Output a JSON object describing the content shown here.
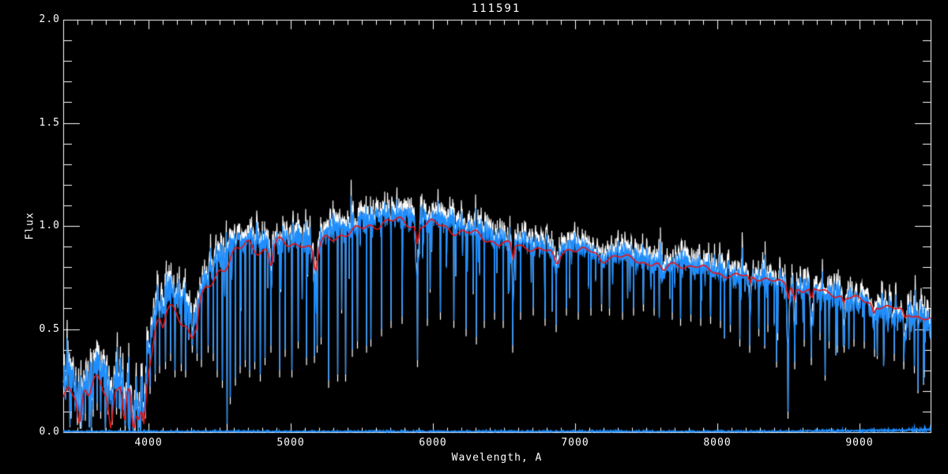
{
  "window": {
    "background": "#000000"
  },
  "chart_data": {
    "type": "line",
    "title": "111591",
    "xlabel": "Wavelength, A",
    "ylabel": "Flux",
    "xlim": [
      3400,
      9500
    ],
    "ylim": [
      0.0,
      2.0
    ],
    "x_tick_labels": [
      "4000",
      "5000",
      "6000",
      "7000",
      "8000",
      "9000"
    ],
    "y_tick_labels": [
      "0.0",
      "0.5",
      "1.0",
      "1.5",
      "2.0"
    ],
    "x_minor_step": 100,
    "y_minor_step": 0.1,
    "grid": false,
    "legend": false,
    "background": "#000000",
    "axis_color": "#ffffff",
    "series": [
      {
        "name": "observed spectrum underlay",
        "color": "#ffffff",
        "role": "white",
        "offset": 0.03,
        "noise_scale": 1.35
      },
      {
        "name": "observed spectrum",
        "color": "#1e8eff",
        "role": "blue",
        "offset": 0.0,
        "noise_scale": 1.0
      },
      {
        "name": "zero error level",
        "color": "#1e8eff",
        "role": "error",
        "level": 0.004
      },
      {
        "name": "model fit",
        "color": "#e81212",
        "role": "model"
      }
    ],
    "continuum": [
      [
        3400,
        0.24
      ],
      [
        3440,
        0.3
      ],
      [
        3480,
        0.27
      ],
      [
        3520,
        0.22
      ],
      [
        3560,
        0.28
      ],
      [
        3600,
        0.31
      ],
      [
        3650,
        0.33
      ],
      [
        3700,
        0.29
      ],
      [
        3735,
        0.24
      ],
      [
        3770,
        0.29
      ],
      [
        3800,
        0.31
      ],
      [
        3830,
        0.24
      ],
      [
        3865,
        0.27
      ],
      [
        3900,
        0.18
      ],
      [
        3935,
        0.22
      ],
      [
        3970,
        0.22
      ],
      [
        4000,
        0.42
      ],
      [
        4050,
        0.6
      ],
      [
        4100,
        0.65
      ],
      [
        4150,
        0.69
      ],
      [
        4200,
        0.67
      ],
      [
        4260,
        0.63
      ],
      [
        4310,
        0.62
      ],
      [
        4360,
        0.7
      ],
      [
        4430,
        0.78
      ],
      [
        4500,
        0.86
      ],
      [
        4600,
        0.92
      ],
      [
        4700,
        0.94
      ],
      [
        4800,
        0.93
      ],
      [
        4900,
        0.94
      ],
      [
        5000,
        0.94
      ],
      [
        5080,
        0.96
      ],
      [
        5170,
        0.9
      ],
      [
        5250,
        0.97
      ],
      [
        5350,
        0.99
      ],
      [
        5450,
        1.0
      ],
      [
        5550,
        1.03
      ],
      [
        5650,
        1.05
      ],
      [
        5750,
        1.05
      ],
      [
        5850,
        1.04
      ],
      [
        5950,
        1.04
      ],
      [
        6050,
        1.03
      ],
      [
        6150,
        1.01
      ],
      [
        6250,
        0.99
      ],
      [
        6350,
        0.97
      ],
      [
        6450,
        0.95
      ],
      [
        6550,
        0.93
      ],
      [
        6650,
        0.92
      ],
      [
        6750,
        0.91
      ],
      [
        6870,
        0.88
      ],
      [
        6950,
        0.91
      ],
      [
        7050,
        0.9
      ],
      [
        7150,
        0.88
      ],
      [
        7250,
        0.87
      ],
      [
        7350,
        0.86
      ],
      [
        7450,
        0.84
      ],
      [
        7550,
        0.83
      ],
      [
        7650,
        0.825
      ],
      [
        7750,
        0.82
      ],
      [
        7850,
        0.81
      ],
      [
        7950,
        0.79
      ],
      [
        8050,
        0.77
      ],
      [
        8150,
        0.76
      ],
      [
        8250,
        0.755
      ],
      [
        8350,
        0.75
      ],
      [
        8450,
        0.72
      ],
      [
        8550,
        0.7
      ],
      [
        8650,
        0.69
      ],
      [
        8750,
        0.675
      ],
      [
        8850,
        0.66
      ],
      [
        8950,
        0.64
      ],
      [
        9050,
        0.62
      ],
      [
        9150,
        0.6
      ],
      [
        9250,
        0.58
      ],
      [
        9350,
        0.56
      ],
      [
        9450,
        0.535
      ],
      [
        9500,
        0.52
      ]
    ],
    "noise_sigma": [
      [
        3400,
        0.085
      ],
      [
        3900,
        0.075
      ],
      [
        4300,
        0.062
      ],
      [
        5000,
        0.05
      ],
      [
        5800,
        0.048
      ],
      [
        6500,
        0.042
      ],
      [
        7500,
        0.042
      ],
      [
        8300,
        0.045
      ],
      [
        8800,
        0.05
      ],
      [
        9200,
        0.06
      ],
      [
        9500,
        0.075
      ]
    ],
    "model_offset": [
      [
        3400,
        -0.06
      ],
      [
        3800,
        -0.08
      ],
      [
        4100,
        -0.1
      ],
      [
        4400,
        -0.08
      ],
      [
        4700,
        -0.04
      ],
      [
        5200,
        -0.03
      ],
      [
        6000,
        -0.03
      ],
      [
        6800,
        -0.02
      ],
      [
        7600,
        -0.01
      ],
      [
        8600,
        0.0
      ],
      [
        9000,
        0.01
      ],
      [
        9500,
        0.02
      ]
    ],
    "absorption_features": [
      [
        3515,
        14,
        0.1,
        0.13
      ],
      [
        3580,
        18,
        0.06,
        0.06
      ],
      [
        3735,
        13,
        0.1,
        0.14
      ],
      [
        3830,
        11,
        0.16,
        0.14
      ],
      [
        3890,
        11,
        0.16,
        0.1
      ],
      [
        3933,
        9,
        0.12,
        0.06
      ],
      [
        3968,
        9,
        0.11,
        0.08
      ],
      [
        4101,
        11,
        0.08,
        0.06
      ],
      [
        4305,
        22,
        0.1,
        0.07
      ],
      [
        4340,
        9,
        0.07,
        0.05
      ],
      [
        4861,
        11,
        0.14,
        0.08
      ],
      [
        5175,
        13,
        0.2,
        0.1
      ],
      [
        5890,
        9,
        0.3,
        0.09
      ],
      [
        6563,
        7,
        0.28,
        0.08
      ],
      [
        6870,
        18,
        0.09,
        0.05
      ],
      [
        7190,
        22,
        0.05,
        0.03
      ],
      [
        7620,
        22,
        0.07,
        0.04
      ],
      [
        8230,
        7,
        0.18,
        0.04
      ],
      [
        8498,
        7,
        0.3,
        0.06
      ],
      [
        8542,
        7,
        0.2,
        0.06
      ],
      [
        8662,
        7,
        0.22,
        0.06
      ],
      [
        8890,
        7,
        0.14,
        0.03
      ],
      [
        9100,
        9,
        0.08,
        0.04
      ],
      [
        9320,
        9,
        0.08,
        0.03
      ]
    ],
    "deep_lines": [
      [
        3455,
        0.1
      ],
      [
        3500,
        0.07
      ],
      [
        3520,
        0.05
      ],
      [
        3555,
        0.09
      ],
      [
        3585,
        0.12
      ],
      [
        3610,
        0.11
      ],
      [
        3640,
        0.14
      ],
      [
        3665,
        0.1
      ],
      [
        3695,
        0.13
      ],
      [
        3715,
        0.12
      ],
      [
        3745,
        0.07
      ],
      [
        3775,
        0.12
      ],
      [
        3805,
        0.1
      ],
      [
        3835,
        0.03
      ],
      [
        3870,
        0.05
      ],
      [
        3905,
        0.03
      ],
      [
        3925,
        0.06
      ],
      [
        3940,
        0.07
      ],
      [
        3958,
        0.09
      ],
      [
        3978,
        0.1
      ],
      [
        4010,
        0.22
      ],
      [
        4046,
        0.28
      ],
      [
        4078,
        0.32
      ],
      [
        4120,
        0.34
      ],
      [
        4155,
        0.38
      ],
      [
        4185,
        0.3
      ],
      [
        4230,
        0.33
      ],
      [
        4262,
        0.3
      ],
      [
        4308,
        0.42
      ],
      [
        4342,
        0.38
      ],
      [
        4372,
        0.35
      ],
      [
        4420,
        0.42
      ],
      [
        4455,
        0.38
      ],
      [
        4482,
        0.3
      ],
      [
        4520,
        0.25
      ],
      [
        4552,
        0.04
      ],
      [
        4575,
        0.17
      ],
      [
        4610,
        0.26
      ],
      [
        4645,
        0.32
      ],
      [
        4680,
        0.35
      ],
      [
        4712,
        0.3
      ],
      [
        4748,
        0.34
      ],
      [
        4786,
        0.28
      ],
      [
        4820,
        0.36
      ],
      [
        4861,
        0.42
      ],
      [
        4922,
        0.3
      ],
      [
        4960,
        0.4
      ],
      [
        5008,
        0.3
      ],
      [
        5052,
        0.44
      ],
      [
        5110,
        0.36
      ],
      [
        5168,
        0.37
      ],
      [
        5185,
        0.42
      ],
      [
        5215,
        0.46
      ],
      [
        5268,
        0.25
      ],
      [
        5330,
        0.28
      ],
      [
        5385,
        0.28
      ],
      [
        5432,
        0.4
      ],
      [
        5470,
        0.44
      ],
      [
        5532,
        0.42
      ],
      [
        5565,
        0.45
      ],
      [
        5640,
        0.5
      ],
      [
        5705,
        0.54
      ],
      [
        5782,
        0.56
      ],
      [
        5892,
        0.35
      ],
      [
        5960,
        0.55
      ],
      [
        6052,
        0.58
      ],
      [
        6148,
        0.54
      ],
      [
        6232,
        0.5
      ],
      [
        6305,
        0.46
      ],
      [
        6362,
        0.54
      ],
      [
        6432,
        0.58
      ],
      [
        6495,
        0.54
      ],
      [
        6562,
        0.42
      ],
      [
        6618,
        0.58
      ],
      [
        6705,
        0.6
      ],
      [
        6790,
        0.55
      ],
      [
        6868,
        0.52
      ],
      [
        6940,
        0.6
      ],
      [
        7022,
        0.58
      ],
      [
        7112,
        0.6
      ],
      [
        7185,
        0.62
      ],
      [
        7242,
        0.6
      ],
      [
        7332,
        0.58
      ],
      [
        7412,
        0.6
      ],
      [
        7480,
        0.62
      ],
      [
        7555,
        0.6
      ],
      [
        7682,
        0.58
      ],
      [
        7742,
        0.55
      ],
      [
        7815,
        0.57
      ],
      [
        7882,
        0.55
      ],
      [
        7952,
        0.56
      ],
      [
        8022,
        0.54
      ],
      [
        8092,
        0.52
      ],
      [
        8158,
        0.45
      ],
      [
        8228,
        0.42
      ],
      [
        8292,
        0.5
      ],
      [
        8355,
        0.52
      ],
      [
        8425,
        0.48
      ],
      [
        8498,
        0.1
      ],
      [
        8545,
        0.34
      ],
      [
        8612,
        0.45
      ],
      [
        8662,
        0.36
      ],
      [
        8722,
        0.48
      ],
      [
        8785,
        0.44
      ],
      [
        8845,
        0.42
      ],
      [
        8892,
        0.42
      ],
      [
        8962,
        0.45
      ],
      [
        9032,
        0.44
      ],
      [
        9105,
        0.4
      ],
      [
        9172,
        0.42
      ],
      [
        9245,
        0.38
      ],
      [
        9312,
        0.34
      ],
      [
        9385,
        0.32
      ],
      [
        9455,
        0.3
      ]
    ],
    "emission_spikes": [
      [
        7590,
        0.08
      ],
      [
        7600,
        0.14
      ],
      [
        7612,
        0.1
      ],
      [
        9255,
        0.09
      ],
      [
        9392,
        0.14
      ],
      [
        9432,
        0.1
      ]
    ]
  }
}
